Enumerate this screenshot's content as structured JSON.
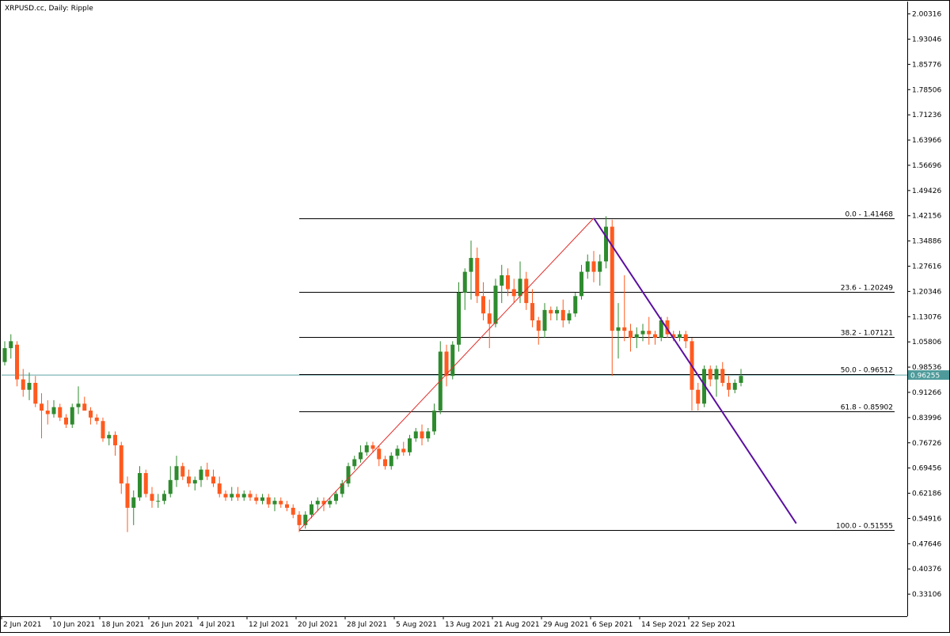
{
  "header": {
    "title": "XRPUSD.cc, Daily:  Ripple"
  },
  "chart_data": {
    "type": "candlestick",
    "symbol": "XRPUSD.cc",
    "timeframe": "Daily",
    "description": "Ripple",
    "ylim": [
      0.2675,
      2.0387
    ],
    "y_ticks": [
      "2.00316",
      "1.93046",
      "1.85776",
      "1.78506",
      "1.71236",
      "1.63966",
      "1.56696",
      "1.49426",
      "1.42156",
      "1.34886",
      "1.27616",
      "1.20346",
      "1.13076",
      "1.05806",
      "0.98536",
      "0.91266",
      "0.83996",
      "0.76726",
      "0.69456",
      "0.62186",
      "0.54916",
      "0.47646",
      "0.40376",
      "0.33106"
    ],
    "x_tick_labels": [
      {
        "label": "2 Jun 2021",
        "index": 0
      },
      {
        "label": "10 Jun 2021",
        "index": 8
      },
      {
        "label": "18 Jun 2021",
        "index": 16
      },
      {
        "label": "26 Jun 2021",
        "index": 24
      },
      {
        "label": "4 Jul 2021",
        "index": 32
      },
      {
        "label": "12 Jul 2021",
        "index": 40
      },
      {
        "label": "20 Jul 2021",
        "index": 48
      },
      {
        "label": "28 Jul 2021",
        "index": 56
      },
      {
        "label": "5 Aug 2021",
        "index": 64
      },
      {
        "label": "13 Aug 2021",
        "index": 72
      },
      {
        "label": "21 Aug 2021",
        "index": 80
      },
      {
        "label": "29 Aug 2021",
        "index": 88
      },
      {
        "label": "6 Sep 2021",
        "index": 96
      },
      {
        "label": "14 Sep 2021",
        "index": 104
      },
      {
        "label": "22 Sep 2021",
        "index": 112
      }
    ],
    "current_price": "0.96255",
    "fibonacci": {
      "start_index": 48,
      "end_index": 96,
      "levels": [
        {
          "label": "0.0 - 1.41468",
          "value": 1.41468
        },
        {
          "label": "23.6 - 1.20249",
          "value": 1.20249
        },
        {
          "label": "38.2 - 1.07121",
          "value": 1.07121
        },
        {
          "label": "50.0 - 0.96512",
          "value": 0.96512
        },
        {
          "label": "61.8 - 0.85902",
          "value": 0.85902
        },
        {
          "label": "100.0 - 0.51555",
          "value": 0.51555
        }
      ]
    },
    "trend_lines": [
      {
        "name": "up",
        "color": "#e0302c",
        "from": {
          "index": 48,
          "price": 0.51555
        },
        "to": {
          "index": 96,
          "price": 1.41468
        }
      },
      {
        "name": "down",
        "color": "#5b0fa0",
        "from": {
          "index": 96,
          "price": 1.41468
        },
        "to": {
          "index": 129,
          "price": 0.535
        }
      }
    ],
    "colors": {
      "bull": "#2e8b2e",
      "bear": "#ff5a1f",
      "hline": "#5fa3a3",
      "price_box": "#4e9a9a",
      "fib": "#000000"
    },
    "candles": [
      [
        1.0,
        1.06,
        0.99,
        1.04
      ],
      [
        1.04,
        1.08,
        1.01,
        1.06
      ],
      [
        1.05,
        1.06,
        0.93,
        0.95
      ],
      [
        0.95,
        0.98,
        0.9,
        0.92
      ],
      [
        0.92,
        0.97,
        0.89,
        0.94
      ],
      [
        0.94,
        0.96,
        0.87,
        0.88
      ],
      [
        0.88,
        0.91,
        0.78,
        0.86
      ],
      [
        0.86,
        0.89,
        0.82,
        0.85
      ],
      [
        0.85,
        0.89,
        0.84,
        0.87
      ],
      [
        0.87,
        0.88,
        0.83,
        0.84
      ],
      [
        0.84,
        0.85,
        0.81,
        0.82
      ],
      [
        0.82,
        0.88,
        0.81,
        0.87
      ],
      [
        0.87,
        0.93,
        0.85,
        0.88
      ],
      [
        0.88,
        0.9,
        0.86,
        0.86
      ],
      [
        0.86,
        0.87,
        0.82,
        0.84
      ],
      [
        0.84,
        0.85,
        0.82,
        0.83
      ],
      [
        0.83,
        0.84,
        0.77,
        0.78
      ],
      [
        0.78,
        0.8,
        0.76,
        0.79
      ],
      [
        0.79,
        0.8,
        0.73,
        0.76
      ],
      [
        0.76,
        0.77,
        0.62,
        0.65
      ],
      [
        0.65,
        0.67,
        0.51,
        0.58
      ],
      [
        0.58,
        0.63,
        0.53,
        0.61
      ],
      [
        0.61,
        0.7,
        0.6,
        0.68
      ],
      [
        0.68,
        0.69,
        0.61,
        0.62
      ],
      [
        0.62,
        0.64,
        0.58,
        0.6
      ],
      [
        0.6,
        0.62,
        0.58,
        0.6
      ],
      [
        0.6,
        0.63,
        0.59,
        0.62
      ],
      [
        0.62,
        0.7,
        0.61,
        0.66
      ],
      [
        0.66,
        0.73,
        0.64,
        0.7
      ],
      [
        0.7,
        0.71,
        0.66,
        0.67
      ],
      [
        0.67,
        0.69,
        0.64,
        0.65
      ],
      [
        0.65,
        0.67,
        0.63,
        0.66
      ],
      [
        0.66,
        0.7,
        0.64,
        0.69
      ],
      [
        0.69,
        0.71,
        0.66,
        0.67
      ],
      [
        0.67,
        0.69,
        0.64,
        0.65
      ],
      [
        0.65,
        0.67,
        0.61,
        0.62
      ],
      [
        0.62,
        0.63,
        0.6,
        0.61
      ],
      [
        0.61,
        0.64,
        0.6,
        0.62
      ],
      [
        0.62,
        0.64,
        0.6,
        0.61
      ],
      [
        0.61,
        0.63,
        0.6,
        0.62
      ],
      [
        0.62,
        0.63,
        0.6,
        0.61
      ],
      [
        0.61,
        0.62,
        0.59,
        0.6
      ],
      [
        0.6,
        0.62,
        0.59,
        0.61
      ],
      [
        0.61,
        0.62,
        0.58,
        0.59
      ],
      [
        0.59,
        0.61,
        0.57,
        0.6
      ],
      [
        0.6,
        0.61,
        0.58,
        0.59
      ],
      [
        0.59,
        0.6,
        0.57,
        0.58
      ],
      [
        0.58,
        0.59,
        0.55,
        0.56
      ],
      [
        0.56,
        0.57,
        0.51,
        0.53
      ],
      [
        0.53,
        0.57,
        0.52,
        0.56
      ],
      [
        0.56,
        0.6,
        0.55,
        0.59
      ],
      [
        0.59,
        0.61,
        0.57,
        0.6
      ],
      [
        0.6,
        0.61,
        0.57,
        0.59
      ],
      [
        0.59,
        0.61,
        0.58,
        0.6
      ],
      [
        0.6,
        0.63,
        0.59,
        0.62
      ],
      [
        0.62,
        0.66,
        0.61,
        0.65
      ],
      [
        0.65,
        0.71,
        0.64,
        0.7
      ],
      [
        0.7,
        0.73,
        0.69,
        0.72
      ],
      [
        0.72,
        0.76,
        0.71,
        0.74
      ],
      [
        0.74,
        0.77,
        0.73,
        0.76
      ],
      [
        0.76,
        0.77,
        0.74,
        0.75
      ],
      [
        0.75,
        0.76,
        0.7,
        0.72
      ],
      [
        0.72,
        0.73,
        0.69,
        0.7
      ],
      [
        0.7,
        0.74,
        0.69,
        0.73
      ],
      [
        0.73,
        0.76,
        0.72,
        0.75
      ],
      [
        0.75,
        0.77,
        0.73,
        0.74
      ],
      [
        0.74,
        0.79,
        0.73,
        0.78
      ],
      [
        0.78,
        0.81,
        0.77,
        0.8
      ],
      [
        0.8,
        0.82,
        0.76,
        0.78
      ],
      [
        0.78,
        0.81,
        0.77,
        0.8
      ],
      [
        0.8,
        0.88,
        0.79,
        0.86
      ],
      [
        0.86,
        1.06,
        0.85,
        1.03
      ],
      [
        1.03,
        1.05,
        0.93,
        0.96
      ],
      [
        0.96,
        1.06,
        0.95,
        1.05
      ],
      [
        1.05,
        1.23,
        1.03,
        1.2
      ],
      [
        1.2,
        1.27,
        1.15,
        1.26
      ],
      [
        1.26,
        1.35,
        1.18,
        1.3
      ],
      [
        1.3,
        1.33,
        1.17,
        1.19
      ],
      [
        1.19,
        1.23,
        1.12,
        1.14
      ],
      [
        1.14,
        1.18,
        1.04,
        1.11
      ],
      [
        1.11,
        1.24,
        1.1,
        1.22
      ],
      [
        1.22,
        1.28,
        1.17,
        1.25
      ],
      [
        1.25,
        1.27,
        1.19,
        1.21
      ],
      [
        1.21,
        1.24,
        1.17,
        1.19
      ],
      [
        1.19,
        1.29,
        1.17,
        1.24
      ],
      [
        1.24,
        1.26,
        1.15,
        1.17
      ],
      [
        1.17,
        1.21,
        1.1,
        1.12
      ],
      [
        1.12,
        1.13,
        1.05,
        1.09
      ],
      [
        1.09,
        1.17,
        1.07,
        1.15
      ],
      [
        1.15,
        1.16,
        1.12,
        1.14
      ],
      [
        1.14,
        1.16,
        1.12,
        1.15
      ],
      [
        1.15,
        1.18,
        1.1,
        1.12
      ],
      [
        1.12,
        1.15,
        1.11,
        1.14
      ],
      [
        1.14,
        1.2,
        1.13,
        1.19
      ],
      [
        1.19,
        1.28,
        1.18,
        1.26
      ],
      [
        1.26,
        1.31,
        1.24,
        1.29
      ],
      [
        1.29,
        1.32,
        1.23,
        1.26
      ],
      [
        1.26,
        1.31,
        1.22,
        1.29
      ],
      [
        1.29,
        1.42,
        1.27,
        1.39
      ],
      [
        1.39,
        1.41,
        0.96,
        1.09
      ],
      [
        1.09,
        1.17,
        1.01,
        1.1
      ],
      [
        1.1,
        1.25,
        1.06,
        1.09
      ],
      [
        1.09,
        1.11,
        1.03,
        1.07
      ],
      [
        1.07,
        1.1,
        1.04,
        1.08
      ],
      [
        1.08,
        1.11,
        1.06,
        1.09
      ],
      [
        1.09,
        1.13,
        1.05,
        1.08
      ],
      [
        1.08,
        1.09,
        1.05,
        1.07
      ],
      [
        1.07,
        1.13,
        1.06,
        1.12
      ],
      [
        1.12,
        1.13,
        1.07,
        1.08
      ],
      [
        1.08,
        1.09,
        1.06,
        1.07
      ],
      [
        1.07,
        1.09,
        1.06,
        1.08
      ],
      [
        1.08,
        1.09,
        1.04,
        1.06
      ],
      [
        1.06,
        1.07,
        0.86,
        0.92
      ],
      [
        0.92,
        0.94,
        0.86,
        0.88
      ],
      [
        0.88,
        0.99,
        0.87,
        0.98
      ],
      [
        0.98,
        0.99,
        0.93,
        0.95
      ],
      [
        0.95,
        0.99,
        0.9,
        0.98
      ],
      [
        0.98,
        1.0,
        0.93,
        0.94
      ],
      [
        0.94,
        0.96,
        0.9,
        0.92
      ],
      [
        0.92,
        0.95,
        0.91,
        0.94
      ],
      [
        0.94,
        0.98,
        0.93,
        0.96
      ]
    ]
  }
}
